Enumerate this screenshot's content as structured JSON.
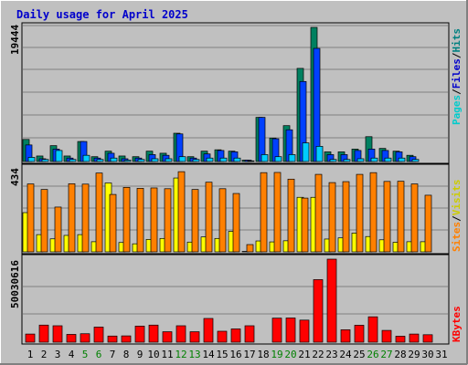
{
  "title": "Daily usage for April 2025",
  "panels": {
    "hits": {
      "max_label": "19444",
      "legend": [
        {
          "text": "Pages",
          "color": "#00cccc"
        },
        {
          "text": "/",
          "color": "#000000"
        },
        {
          "text": "Files",
          "color": "#0000cc"
        },
        {
          "text": "/",
          "color": "#000000"
        },
        {
          "text": "Hits",
          "color": "#008080"
        }
      ]
    },
    "visits": {
      "max_label": "434",
      "legend": [
        {
          "text": "Sites",
          "color": "#ff8000"
        },
        {
          "text": "/",
          "color": "#000000"
        },
        {
          "text": "Visits",
          "color": "#cccc00"
        }
      ]
    },
    "kbytes": {
      "max_label": "50030616",
      "legend": [
        {
          "text": "KBytes",
          "color": "#ff0000"
        }
      ]
    }
  },
  "chart_data": {
    "type": "bar",
    "title": "Daily usage for April 2025",
    "days": [
      "1",
      "2",
      "3",
      "4",
      "5",
      "6",
      "7",
      "8",
      "9",
      "10",
      "11",
      "12",
      "13",
      "14",
      "15",
      "16",
      "17",
      "18",
      "19",
      "20",
      "21",
      "22",
      "23",
      "24",
      "25",
      "26",
      "27",
      "28",
      "29",
      "30",
      "31"
    ],
    "weekend_days": [
      "5",
      "6",
      "12",
      "13",
      "19",
      "20",
      "26",
      "27"
    ],
    "colors": {
      "hits": "#008060",
      "files": "#0040ff",
      "pages": "#00ccff",
      "visits": "#ffff00",
      "sites": "#ff8000",
      "kbytes": "#ff0000",
      "weekend_label": "#008000",
      "weekday_label": "#000000"
    },
    "hits_ylim": [
      0,
      19444
    ],
    "visits_ylim": [
      0,
      434
    ],
    "kbytes_ylim": [
      0,
      50030616
    ],
    "series": [
      {
        "name": "Hits",
        "values": [
          3200,
          800,
          2300,
          800,
          2900,
          700,
          1500,
          800,
          700,
          1500,
          1200,
          4100,
          700,
          1500,
          1700,
          1500,
          200,
          6400,
          3400,
          5200,
          13500,
          19444,
          1400,
          1400,
          1800,
          3600,
          1900,
          1500,
          900,
          0,
          0
        ]
      },
      {
        "name": "Files",
        "values": [
          2400,
          400,
          1800,
          500,
          2900,
          500,
          1200,
          400,
          500,
          1000,
          900,
          4000,
          500,
          1100,
          1600,
          1400,
          200,
          6400,
          3300,
          4600,
          11600,
          16400,
          1000,
          1000,
          1600,
          1800,
          1600,
          1400,
          700,
          0,
          0
        ]
      },
      {
        "name": "Pages",
        "values": [
          600,
          300,
          1600,
          300,
          900,
          300,
          500,
          200,
          300,
          400,
          400,
          700,
          300,
          500,
          500,
          500,
          100,
          1000,
          700,
          1000,
          2700,
          2200,
          300,
          300,
          400,
          500,
          500,
          500,
          300,
          0,
          0
        ]
      },
      {
        "name": "Visits",
        "values": [
          205,
          90,
          68,
          86,
          90,
          53,
          360,
          49,
          42,
          65,
          70,
          386,
          51,
          78,
          70,
          107,
          0,
          57,
          52,
          58,
          285,
          285,
          67,
          73,
          98,
          80,
          63,
          50,
          53,
          53,
          0
        ],
        "sites": [
          355,
          326,
          234,
          356,
          354,
          412,
          300,
          337,
          332,
          334,
          330,
          419,
          326,
          364,
          330,
          305,
          38,
          414,
          415,
          380,
          281,
          405,
          362,
          367,
          405,
          414,
          368,
          369,
          355,
          296,
          0
        ]
      },
      {
        "name": "KBytes",
        "values": [
          4900000,
          10300000,
          9900000,
          4700000,
          5100000,
          9100000,
          3700000,
          3800000,
          9700000,
          10300000,
          6300000,
          9900000,
          6300000,
          14300000,
          6600000,
          8000000,
          9900000,
          0,
          14500000,
          14600000,
          13300000,
          37700000,
          50030616,
          7500000,
          10200000,
          15300000,
          7100000,
          3600000,
          4900000,
          4500000,
          0
        ]
      }
    ]
  }
}
